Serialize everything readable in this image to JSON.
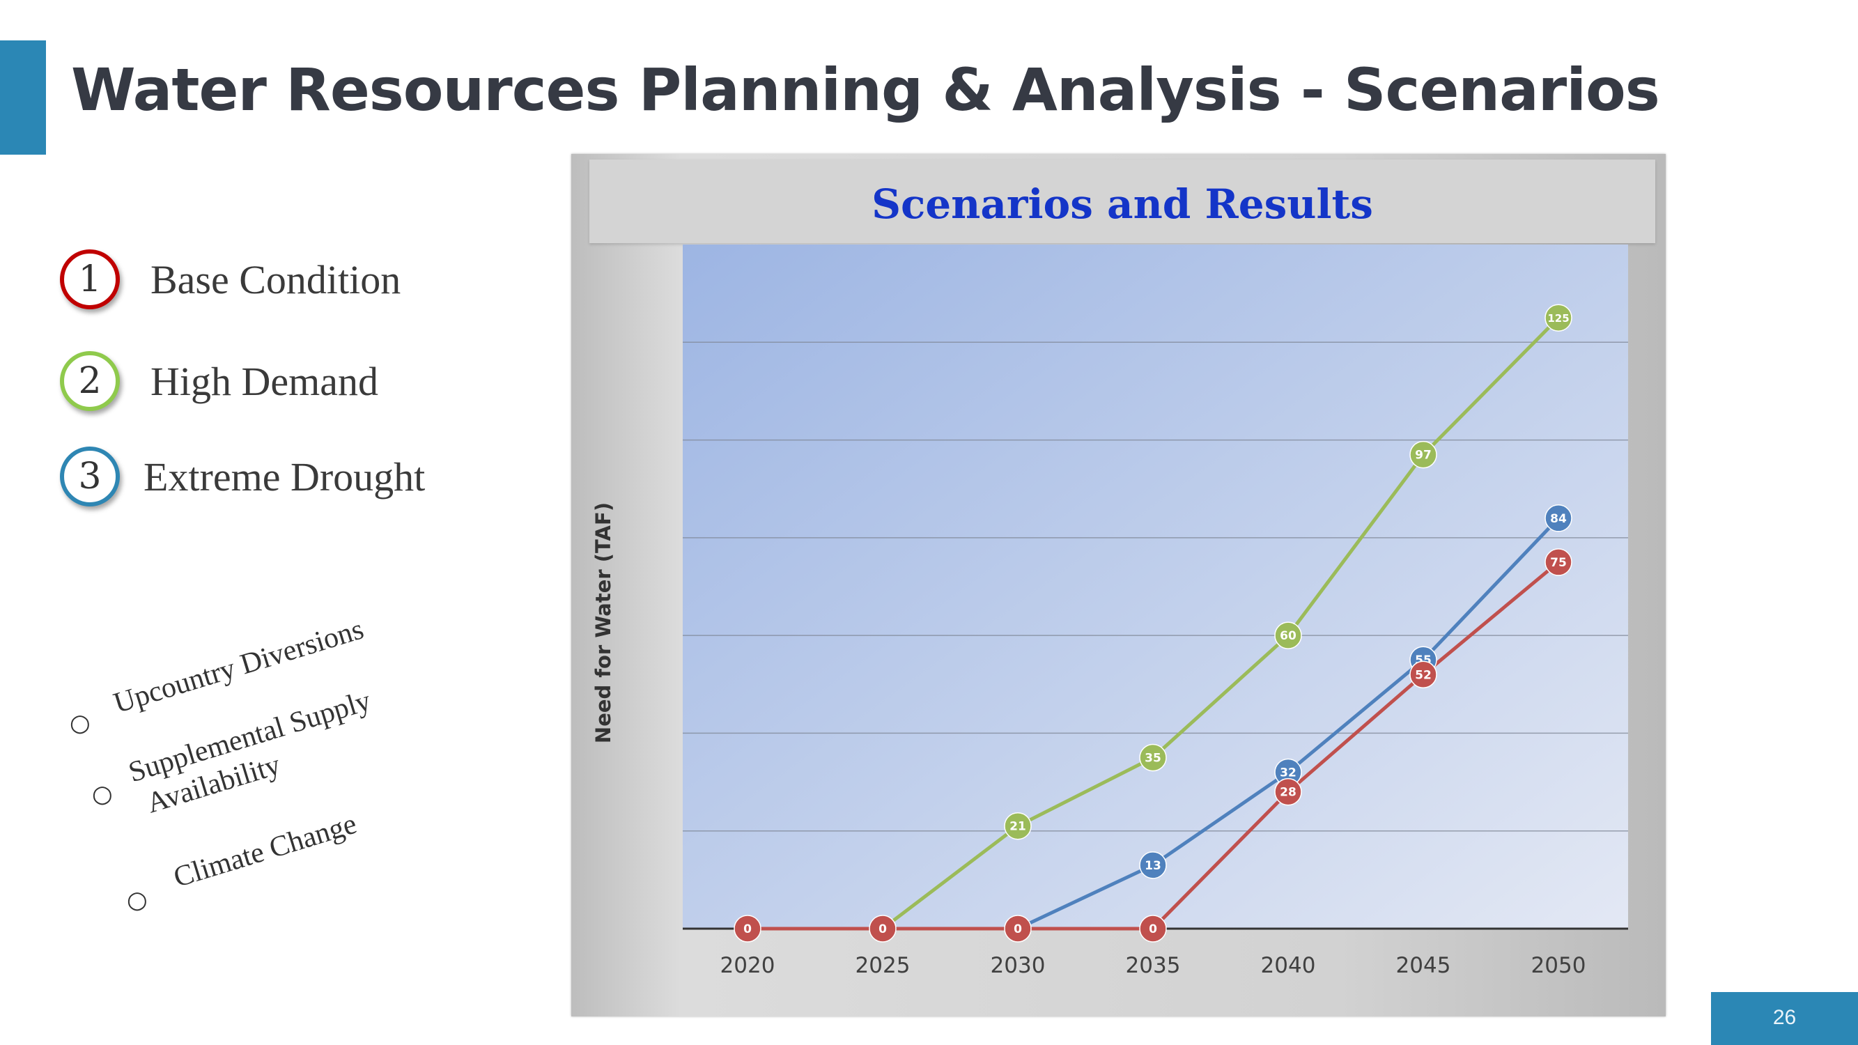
{
  "slide": {
    "title": "Water Resources Planning & Analysis - Scenarios",
    "page_number": "26"
  },
  "scenarios": [
    {
      "number": "1",
      "label": "Base Condition",
      "color": "#c00000"
    },
    {
      "number": "2",
      "label": "High Demand",
      "color": "#8fca4c"
    },
    {
      "number": "3",
      "label": "Extreme Drought",
      "color": "#2e86b3"
    }
  ],
  "factors": [
    {
      "bullet": "○",
      "lines": [
        "Upcountry Diversions"
      ]
    },
    {
      "bullet": "○",
      "lines": [
        "Supplemental Supply",
        "Availability"
      ]
    },
    {
      "bullet": "○",
      "lines": [
        "Climate Change"
      ]
    }
  ],
  "chart_data": {
    "type": "line",
    "title": "Scenarios and Results",
    "ylabel": "Need for Water (TAF)",
    "xlabel": "",
    "x": [
      "2020",
      "2025",
      "2030",
      "2035",
      "2040",
      "2045",
      "2050"
    ],
    "ylim": [
      0,
      140
    ],
    "grid": true,
    "y_tick_labels_shown": false,
    "series": [
      {
        "color": "#9bbb59",
        "values": [
          0,
          0,
          21,
          35,
          60,
          97,
          125
        ]
      },
      {
        "color": "#4f81bd",
        "values": [
          0,
          0,
          0,
          13,
          32,
          55,
          84
        ]
      },
      {
        "color": "#c0504d",
        "values": [
          0,
          0,
          0,
          0,
          28,
          52,
          75
        ]
      }
    ],
    "data_labels": [
      {
        "series": 0,
        "points": [
          2,
          3,
          4,
          5,
          6
        ]
      },
      {
        "series": 1,
        "points": [
          3,
          4,
          5,
          6
        ]
      },
      {
        "series": 2,
        "points": [
          0,
          1,
          2,
          3,
          4,
          5,
          6
        ]
      }
    ]
  }
}
